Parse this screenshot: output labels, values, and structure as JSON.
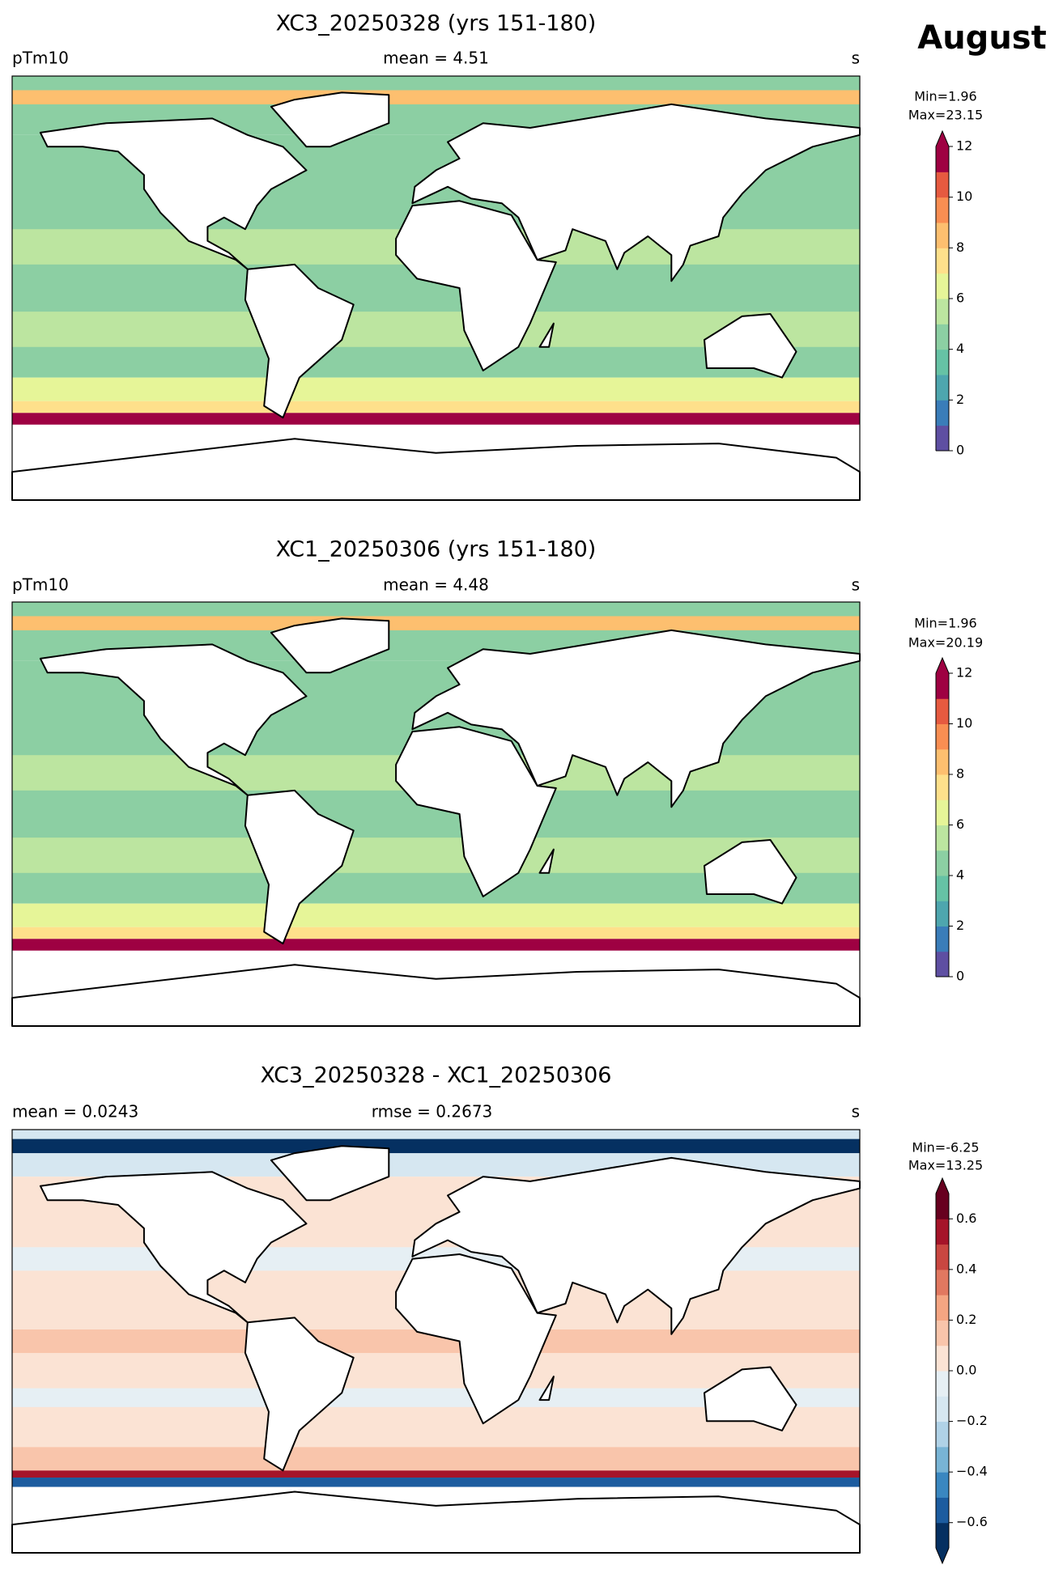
{
  "suptitle": "August",
  "chart_data": [
    {
      "type": "map",
      "title": "XC3_20250328 (yrs 151-180)",
      "left_label": "pTm10",
      "center_label": "mean = 4.51",
      "right_label": "s",
      "min_label": "Min=1.96",
      "max_label": "Max=23.15",
      "field": "wave",
      "colorbar": {
        "levels": [
          0,
          1,
          2,
          3,
          4,
          5,
          6,
          7,
          8,
          9,
          10,
          11,
          12
        ],
        "extend": "max",
        "colors": [
          "#5e4fa2",
          "#3a7db9",
          "#4ea6ae",
          "#66c2a5",
          "#8ccfa3",
          "#bce5a0",
          "#e6f598",
          "#fee08b",
          "#fdbf6f",
          "#f98e52",
          "#e65a40",
          "#9e0142"
        ],
        "ticks": [
          0,
          2,
          4,
          6,
          8,
          10,
          12
        ]
      }
    },
    {
      "type": "map",
      "title": "XC1_20250306 (yrs 151-180)",
      "left_label": "pTm10",
      "center_label": "mean = 4.48",
      "right_label": "s",
      "min_label": "Min=1.96",
      "max_label": "Max=20.19",
      "field": "wave",
      "colorbar": {
        "levels": [
          0,
          1,
          2,
          3,
          4,
          5,
          6,
          7,
          8,
          9,
          10,
          11,
          12
        ],
        "extend": "max",
        "colors": [
          "#5e4fa2",
          "#3a7db9",
          "#4ea6ae",
          "#66c2a5",
          "#8ccfa3",
          "#bce5a0",
          "#e6f598",
          "#fee08b",
          "#fdbf6f",
          "#f98e52",
          "#e65a40",
          "#9e0142"
        ],
        "ticks": [
          0,
          2,
          4,
          6,
          8,
          10,
          12
        ]
      }
    },
    {
      "type": "map",
      "title": "XC3_20250328 - XC1_20250306",
      "left_label": "mean = 0.0243",
      "center_label": "rmse = 0.2673",
      "right_label": "s",
      "min_label": "Min=-6.25",
      "max_label": "Max=13.25",
      "field": "diff",
      "colorbar": {
        "levels": [
          -0.7,
          -0.6,
          -0.5,
          -0.4,
          -0.3,
          -0.2,
          -0.1,
          0,
          0.1,
          0.2,
          0.3,
          0.4,
          0.5,
          0.6,
          0.7
        ],
        "extend": "both",
        "colors": [
          "#053061",
          "#1c5c9f",
          "#3a87c0",
          "#78b4d5",
          "#b0d2e7",
          "#d6e7f1",
          "#e6eff4",
          "#fbe3d4",
          "#f9c5ab",
          "#f4a582",
          "#e17860",
          "#c94741",
          "#a51429",
          "#67001f"
        ],
        "ticks": [
          {
            "value": -0.6,
            "label": "−0.6"
          },
          {
            "value": -0.4,
            "label": "−0.4"
          },
          {
            "value": -0.2,
            "label": "−0.2"
          },
          {
            "value": 0,
            "label": "0.0"
          },
          0.2,
          0.4,
          0.6
        ]
      }
    }
  ]
}
